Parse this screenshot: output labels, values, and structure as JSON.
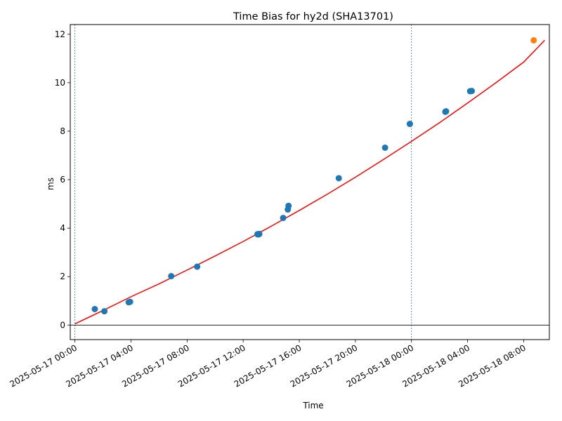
{
  "chart_data": {
    "type": "scatter",
    "title": "Time Bias for hy2d (SHA13701)",
    "xlabel": "Time",
    "ylabel": "ms",
    "xlim": [
      "2025-05-16 23:40",
      "2025-05-18 09:50"
    ],
    "ylim": [
      -0.6,
      12.4
    ],
    "x_ticks": [
      "2025-05-17 00:00",
      "2025-05-17 04:00",
      "2025-05-17 08:00",
      "2025-05-17 12:00",
      "2025-05-17 16:00",
      "2025-05-17 20:00",
      "2025-05-18 00:00",
      "2025-05-18 04:00",
      "2025-05-18 08:00"
    ],
    "y_ticks": [
      "0",
      "2",
      "4",
      "6",
      "8",
      "10",
      "12"
    ],
    "y_tick_values": [
      0,
      2,
      4,
      6,
      8,
      10,
      12
    ],
    "vertical_lines": [
      "2025-05-17 00:00",
      "2025-05-18 00:00"
    ],
    "horizontal_line": 0,
    "colors": {
      "points": "#1f77b4",
      "fit": "#ff0000",
      "highlight": "#ff7f0e",
      "vline": "#1f77b4",
      "hline": "#000000"
    },
    "series": [
      {
        "points": [
          {
            "x": "2025-05-17 01:25",
            "y": 0.66
          },
          {
            "x": "2025-05-17 02:06",
            "y": 0.57
          },
          {
            "x": "2025-05-17 03:50",
            "y": 0.94
          },
          {
            "x": "2025-05-17 03:56",
            "y": 0.96
          },
          {
            "x": "2025-05-17 06:52",
            "y": 2.02
          },
          {
            "x": "2025-05-17 08:43",
            "y": 2.41
          },
          {
            "x": "2025-05-17 13:01",
            "y": 3.75
          },
          {
            "x": "2025-05-17 13:05",
            "y": 3.74
          },
          {
            "x": "2025-05-17 13:09",
            "y": 3.76
          },
          {
            "x": "2025-05-17 14:51",
            "y": 4.42
          },
          {
            "x": "2025-05-17 15:11",
            "y": 4.77
          },
          {
            "x": "2025-05-17 15:14",
            "y": 4.92
          },
          {
            "x": "2025-05-17 18:49",
            "y": 6.06
          },
          {
            "x": "2025-05-17 22:07",
            "y": 7.32
          },
          {
            "x": "2025-05-17 23:53",
            "y": 8.3
          },
          {
            "x": "2025-05-18 02:25",
            "y": 8.8
          },
          {
            "x": "2025-05-18 02:28",
            "y": 8.82
          },
          {
            "x": "2025-05-18 04:11",
            "y": 9.65
          },
          {
            "x": "2025-05-18 04:18",
            "y": 9.66
          }
        ]
      },
      {
        "points": [
          {
            "x": "2025-05-18 08:43",
            "y": 11.75
          }
        ]
      }
    ],
    "fit_curve": {
      "points": [
        {
          "x": "2025-05-17 00:00",
          "y": 0.05
        },
        {
          "x": "2025-05-17 02:00",
          "y": 0.6
        },
        {
          "x": "2025-05-17 04:00",
          "y": 1.17
        },
        {
          "x": "2025-05-17 06:00",
          "y": 1.7
        },
        {
          "x": "2025-05-17 08:00",
          "y": 2.27
        },
        {
          "x": "2025-05-17 10:00",
          "y": 2.85
        },
        {
          "x": "2025-05-17 12:00",
          "y": 3.45
        },
        {
          "x": "2025-05-17 14:00",
          "y": 4.08
        },
        {
          "x": "2025-05-17 16:00",
          "y": 4.73
        },
        {
          "x": "2025-05-17 18:00",
          "y": 5.4
        },
        {
          "x": "2025-05-17 20:00",
          "y": 6.1
        },
        {
          "x": "2025-05-17 22:00",
          "y": 6.83
        },
        {
          "x": "2025-05-18 00:00",
          "y": 7.58
        },
        {
          "x": "2025-05-18 02:00",
          "y": 8.35
        },
        {
          "x": "2025-05-18 04:00",
          "y": 9.16
        },
        {
          "x": "2025-05-18 06:00",
          "y": 9.99
        },
        {
          "x": "2025-05-18 08:00",
          "y": 10.85
        },
        {
          "x": "2025-05-18 09:30",
          "y": 11.75
        }
      ]
    }
  }
}
